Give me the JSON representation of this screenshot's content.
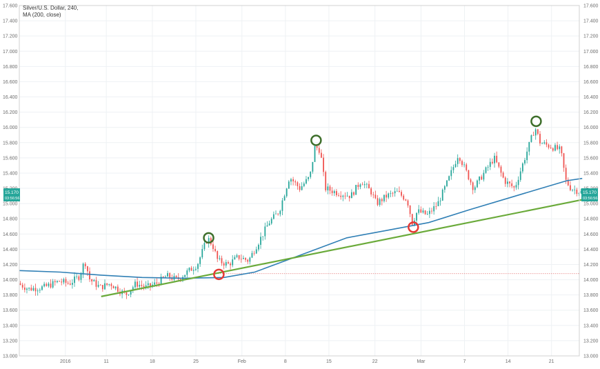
{
  "header": {
    "title": "Silver/U.S. Dollar, 240,",
    "indicator": "MA (200, close)"
  },
  "price_badge": {
    "price": "15.170",
    "countdown": "03:56:56"
  },
  "colors": {
    "up": "#26a69a",
    "down": "#ef5350",
    "ma": "#2f7fb5",
    "trendline": "#6aaa3a",
    "circle_high": "#3d6e2a",
    "circle_low": "#e53935",
    "support_dotted": "#e57373",
    "badge": "#26a69a"
  },
  "chart_data": {
    "type": "candlestick",
    "title": "Silver/U.S. Dollar, 240,",
    "indicator": "MA (200, close)",
    "ylim": [
      13.0,
      17.6
    ],
    "y_ticks": [
      "17.600",
      "17.400",
      "17.200",
      "17.000",
      "16.800",
      "16.600",
      "16.400",
      "16.200",
      "16.000",
      "15.800",
      "15.600",
      "15.400",
      "15.200",
      "15.000",
      "14.800",
      "14.600",
      "14.400",
      "14.200",
      "14.000",
      "13.800",
      "13.600",
      "13.400",
      "13.200",
      "13.000"
    ],
    "x_ticks": [
      {
        "label": "2016",
        "t": 0.09
      },
      {
        "label": "11",
        "t": 0.17
      },
      {
        "label": "18",
        "t": 0.26
      },
      {
        "label": "25",
        "t": 0.345
      },
      {
        "label": "Feb",
        "t": 0.435
      },
      {
        "label": "8",
        "t": 0.52
      },
      {
        "label": "15",
        "t": 0.605
      },
      {
        "label": "22",
        "t": 0.695
      },
      {
        "label": "Mar",
        "t": 0.785
      },
      {
        "label": "7",
        "t": 0.87
      },
      {
        "label": "14",
        "t": 0.955
      },
      {
        "label": "21",
        "t": 1.04
      }
    ],
    "price_path": [
      [
        0,
        13.95
      ],
      [
        0.02,
        13.88
      ],
      [
        0.05,
        13.9
      ],
      [
        0.08,
        13.98
      ],
      [
        0.1,
        13.95
      ],
      [
        0.12,
        14.05
      ],
      [
        0.13,
        14.25
      ],
      [
        0.14,
        14.0
      ],
      [
        0.16,
        13.9
      ],
      [
        0.18,
        13.95
      ],
      [
        0.2,
        13.85
      ],
      [
        0.21,
        13.8
      ],
      [
        0.23,
        13.95
      ],
      [
        0.25,
        13.9
      ],
      [
        0.27,
        13.95
      ],
      [
        0.29,
        14.05
      ],
      [
        0.31,
        14.0
      ],
      [
        0.33,
        14.1
      ],
      [
        0.35,
        14.2
      ],
      [
        0.37,
        14.55
      ],
      [
        0.38,
        14.45
      ],
      [
        0.39,
        14.25
      ],
      [
        0.41,
        14.2
      ],
      [
        0.43,
        14.3
      ],
      [
        0.45,
        14.25
      ],
      [
        0.47,
        14.5
      ],
      [
        0.49,
        14.75
      ],
      [
        0.51,
        14.9
      ],
      [
        0.53,
        15.35
      ],
      [
        0.55,
        15.2
      ],
      [
        0.57,
        15.35
      ],
      [
        0.58,
        15.75
      ],
      [
        0.59,
        15.7
      ],
      [
        0.6,
        15.2
      ],
      [
        0.62,
        15.15
      ],
      [
        0.65,
        15.1
      ],
      [
        0.67,
        15.3
      ],
      [
        0.69,
        15.15
      ],
      [
        0.7,
        15.0
      ],
      [
        0.72,
        15.1
      ],
      [
        0.74,
        15.15
      ],
      [
        0.76,
        15.05
      ],
      [
        0.77,
        14.75
      ],
      [
        0.78,
        14.9
      ],
      [
        0.8,
        14.85
      ],
      [
        0.82,
        15.0
      ],
      [
        0.84,
        15.3
      ],
      [
        0.86,
        15.65
      ],
      [
        0.87,
        15.5
      ],
      [
        0.89,
        15.2
      ],
      [
        0.91,
        15.4
      ],
      [
        0.93,
        15.6
      ],
      [
        0.95,
        15.3
      ],
      [
        0.97,
        15.2
      ],
      [
        0.99,
        15.6
      ],
      [
        1.01,
        16.0
      ],
      [
        1.02,
        15.8
      ],
      [
        1.04,
        15.75
      ],
      [
        1.06,
        15.7
      ],
      [
        1.07,
        15.3
      ],
      [
        1.08,
        15.2
      ],
      [
        1.1,
        15.15
      ]
    ],
    "ma_200": [
      [
        0,
        14.12
      ],
      [
        0.08,
        14.1
      ],
      [
        0.16,
        14.06
      ],
      [
        0.24,
        14.03
      ],
      [
        0.32,
        14.02
      ],
      [
        0.4,
        14.03
      ],
      [
        0.46,
        14.1
      ],
      [
        0.52,
        14.25
      ],
      [
        0.58,
        14.4
      ],
      [
        0.64,
        14.55
      ],
      [
        0.72,
        14.65
      ],
      [
        0.8,
        14.75
      ],
      [
        0.88,
        14.92
      ],
      [
        0.96,
        15.08
      ],
      [
        1.02,
        15.2
      ],
      [
        1.07,
        15.3
      ],
      [
        1.1,
        15.33
      ]
    ],
    "trendline": {
      "start": [
        0.16,
        13.78
      ],
      "end": [
        1.1,
        15.05
      ]
    },
    "support_level": 14.08,
    "circled_highs": [
      {
        "t": 0.37,
        "price": 14.55
      },
      {
        "t": 0.58,
        "price": 15.83
      },
      {
        "t": 1.01,
        "price": 16.08
      }
    ],
    "circled_lows": [
      {
        "t": 0.39,
        "price": 14.07
      },
      {
        "t": 0.77,
        "price": 14.69
      }
    ]
  }
}
